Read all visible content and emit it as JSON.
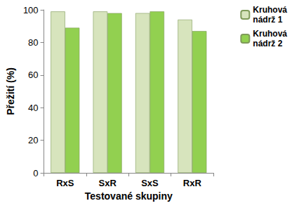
{
  "chart_data": {
    "type": "bar",
    "x_label": "Testované skupiny",
    "y_label": "Přežití (%)",
    "categories": [
      "RxS",
      "SxR",
      "SxS",
      "RxR"
    ],
    "series": [
      {
        "name": "Kruhová nádrž 1",
        "color": "#d7e4bd",
        "values": [
          99,
          99,
          98,
          94
        ]
      },
      {
        "name": "Kruhová nádrž 2",
        "color": "#92d050",
        "values": [
          89,
          98,
          99,
          87
        ]
      }
    ],
    "ylim": [
      0,
      100
    ],
    "yticks": [
      0,
      20,
      40,
      60,
      80,
      100
    ],
    "grid": false,
    "legend": "upper right"
  }
}
